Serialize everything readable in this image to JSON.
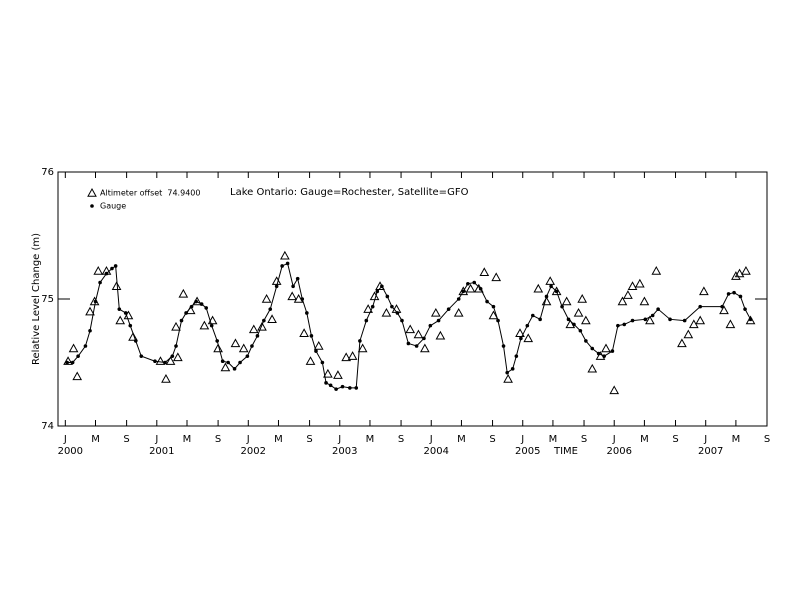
{
  "chart_data": {
    "type": "scatter",
    "title": "Lake Ontario: Gauge=Rochester, Satellite=GFO",
    "y_label": "Relative Level Change (m)",
    "x_label": "TIME",
    "xlim": [
      1999.92,
      2007.67
    ],
    "ylim": [
      74,
      76
    ],
    "yticks": [
      74,
      75,
      76
    ],
    "xticks": [
      {
        "value": 2000.0,
        "label": "J"
      },
      {
        "value": 2000.33,
        "label": "M"
      },
      {
        "value": 2000.67,
        "label": "S"
      },
      {
        "value": 2001.0,
        "label": "J"
      },
      {
        "value": 2001.33,
        "label": "M"
      },
      {
        "value": 2001.67,
        "label": "S"
      },
      {
        "value": 2002.0,
        "label": "J"
      },
      {
        "value": 2002.33,
        "label": "M"
      },
      {
        "value": 2002.67,
        "label": "S"
      },
      {
        "value": 2003.0,
        "label": "J"
      },
      {
        "value": 2003.33,
        "label": "M"
      },
      {
        "value": 2003.67,
        "label": "S"
      },
      {
        "value": 2004.0,
        "label": "J"
      },
      {
        "value": 2004.33,
        "label": "M"
      },
      {
        "value": 2004.67,
        "label": "S"
      },
      {
        "value": 2005.0,
        "label": "J"
      },
      {
        "value": 2005.33,
        "label": "M"
      },
      {
        "value": 2005.67,
        "label": "S"
      },
      {
        "value": 2006.0,
        "label": "J"
      },
      {
        "value": 2006.33,
        "label": "M"
      },
      {
        "value": 2006.67,
        "label": "S"
      },
      {
        "value": 2007.0,
        "label": "J"
      },
      {
        "value": 2007.33,
        "label": "M"
      },
      {
        "value": 2007.67,
        "label": "S"
      }
    ],
    "year_ticks": [
      2000,
      2001,
      2002,
      2003,
      2004,
      2005,
      2006,
      2007
    ],
    "series": [
      {
        "name": "Altimeter offset  74.9400",
        "marker": "triangle",
        "color": "#000000",
        "x": [
          2000.03,
          2000.09,
          2000.13,
          2000.27,
          2000.32,
          2000.36,
          2000.45,
          2000.56,
          2000.6,
          2000.69,
          2000.74,
          2001.04,
          2001.1,
          2001.15,
          2001.21,
          2001.23,
          2001.29,
          2001.37,
          2001.44,
          2001.52,
          2001.61,
          2001.67,
          2001.75,
          2001.86,
          2001.95,
          2002.06,
          2002.15,
          2002.2,
          2002.26,
          2002.31,
          2002.4,
          2002.48,
          2002.55,
          2002.61,
          2002.68,
          2002.77,
          2002.87,
          2002.98,
          2003.07,
          2003.14,
          2003.25,
          2003.31,
          2003.38,
          2003.44,
          2003.51,
          2003.62,
          2003.77,
          2003.86,
          2003.93,
          2004.05,
          2004.1,
          2004.3,
          2004.35,
          2004.43,
          2004.52,
          2004.58,
          2004.68,
          2004.71,
          2004.84,
          2004.97,
          2005.06,
          2005.17,
          2005.26,
          2005.3,
          2005.37,
          2005.48,
          2005.52,
          2005.61,
          2005.65,
          2005.69,
          2005.76,
          2005.85,
          2005.91,
          2006.0,
          2006.09,
          2006.15,
          2006.2,
          2006.28,
          2006.33,
          2006.39,
          2006.46,
          2006.74,
          2006.81,
          2006.87,
          2006.94,
          2006.98,
          2007.2,
          2007.27,
          2007.33,
          2007.37,
          2007.44,
          2007.49
        ],
        "values": [
          74.51,
          74.61,
          74.39,
          74.9,
          74.98,
          75.22,
          75.22,
          75.1,
          74.83,
          74.87,
          74.7,
          74.51,
          74.37,
          74.51,
          74.78,
          74.54,
          75.04,
          74.91,
          74.98,
          74.79,
          74.83,
          74.61,
          74.46,
          74.65,
          74.61,
          74.76,
          74.78,
          75.0,
          74.84,
          75.14,
          75.34,
          75.02,
          75.0,
          74.73,
          74.51,
          74.63,
          74.41,
          74.4,
          74.54,
          74.55,
          74.61,
          74.92,
          75.02,
          75.1,
          74.89,
          74.92,
          74.76,
          74.72,
          74.61,
          74.89,
          74.71,
          74.89,
          75.06,
          75.08,
          75.08,
          75.21,
          74.87,
          75.17,
          74.37,
          74.73,
          74.69,
          75.08,
          74.98,
          75.14,
          75.06,
          74.98,
          74.8,
          74.89,
          75.0,
          74.83,
          74.45,
          74.55,
          74.61,
          74.28,
          74.98,
          75.03,
          75.1,
          75.12,
          74.98,
          74.83,
          75.22,
          74.65,
          74.72,
          74.8,
          74.83,
          75.06,
          74.91,
          74.8,
          75.18,
          75.2,
          75.22,
          74.83
        ]
      },
      {
        "name": "Gauge",
        "marker": "dot",
        "line": true,
        "color": "#000000",
        "x": [
          2000.02,
          2000.08,
          2000.14,
          2000.22,
          2000.27,
          2000.33,
          2000.38,
          2000.45,
          2000.51,
          2000.55,
          2000.59,
          2000.66,
          2000.71,
          2000.77,
          2000.83,
          2000.98,
          2001.09,
          2001.17,
          2001.21,
          2001.27,
          2001.32,
          2001.38,
          2001.43,
          2001.49,
          2001.54,
          2001.6,
          2001.66,
          2001.72,
          2001.78,
          2001.85,
          2001.91,
          2001.99,
          2002.04,
          2002.1,
          2002.17,
          2002.24,
          2002.31,
          2002.37,
          2002.43,
          2002.49,
          2002.54,
          2002.59,
          2002.64,
          2002.69,
          2002.74,
          2002.81,
          2002.85,
          2002.9,
          2002.96,
          2003.03,
          2003.11,
          2003.18,
          2003.22,
          2003.29,
          2003.36,
          2003.41,
          2003.46,
          2003.52,
          2003.57,
          2003.63,
          2003.68,
          2003.75,
          2003.84,
          2003.92,
          2003.99,
          2004.08,
          2004.19,
          2004.3,
          2004.35,
          2004.4,
          2004.47,
          2004.54,
          2004.61,
          2004.68,
          2004.73,
          2004.79,
          2004.83,
          2004.89,
          2004.93,
          2004.98,
          2005.05,
          2005.11,
          2005.19,
          2005.26,
          2005.31,
          2005.37,
          2005.43,
          2005.5,
          2005.56,
          2005.63,
          2005.69,
          2005.76,
          2005.83,
          2005.89,
          2005.98,
          2006.04,
          2006.11,
          2006.2,
          2006.34,
          2006.42,
          2006.48,
          2006.61,
          2006.77,
          2006.94,
          2007.18,
          2007.25,
          2007.31,
          2007.38,
          2007.43,
          2007.49
        ],
        "values": [
          74.5,
          74.5,
          74.55,
          74.63,
          74.75,
          74.98,
          75.13,
          75.2,
          75.24,
          75.26,
          74.92,
          74.89,
          74.79,
          74.67,
          74.55,
          74.51,
          74.5,
          74.55,
          74.63,
          74.83,
          74.89,
          74.94,
          74.98,
          74.96,
          74.93,
          74.79,
          74.67,
          74.51,
          74.5,
          74.45,
          74.5,
          74.55,
          74.63,
          74.71,
          74.83,
          74.92,
          75.1,
          75.26,
          75.28,
          75.1,
          75.16,
          75.0,
          74.89,
          74.71,
          74.59,
          74.5,
          74.34,
          74.32,
          74.29,
          74.31,
          74.3,
          74.3,
          74.67,
          74.83,
          74.94,
          75.06,
          75.1,
          75.02,
          74.94,
          74.89,
          74.83,
          74.65,
          74.63,
          74.69,
          74.79,
          74.83,
          74.92,
          75.0,
          75.06,
          75.12,
          75.13,
          75.08,
          74.98,
          74.94,
          74.83,
          74.63,
          74.42,
          74.45,
          74.55,
          74.69,
          74.79,
          74.87,
          74.84,
          75.02,
          75.1,
          75.06,
          74.94,
          74.84,
          74.8,
          74.75,
          74.67,
          74.61,
          74.57,
          74.55,
          74.59,
          74.79,
          74.8,
          74.83,
          74.84,
          74.87,
          74.92,
          74.84,
          74.83,
          74.94,
          74.94,
          75.04,
          75.05,
          75.02,
          74.92,
          74.84
        ]
      }
    ]
  }
}
